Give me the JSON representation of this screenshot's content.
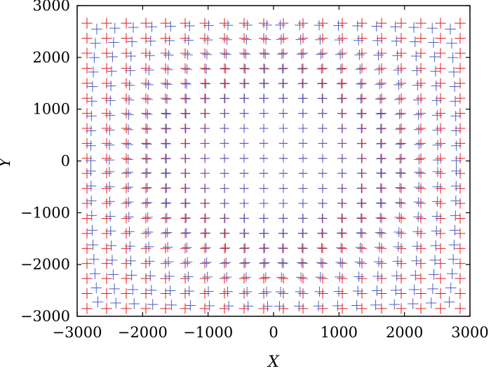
{
  "chart_data": {
    "type": "scatter",
    "title": "",
    "xlabel": "X",
    "ylabel": "Y",
    "xlim": [
      -3000,
      3000
    ],
    "ylim": [
      -3000,
      3000
    ],
    "x_ticks": [
      -3000,
      -2000,
      -1000,
      0,
      1000,
      2000,
      3000
    ],
    "y_ticks": [
      -3000,
      -2000,
      -1000,
      0,
      1000,
      2000,
      3000
    ],
    "x_tick_labels": [
      "−3000",
      "−2000",
      "−1000",
      "0",
      "1000",
      "2000",
      "3000"
    ],
    "y_tick_labels": [
      "−3000",
      "−2000",
      "−1000",
      "0",
      "1000",
      "2000",
      "3000"
    ],
    "grid": false,
    "legend": "none",
    "marker": "+",
    "grid_points": {
      "x_start": -2850,
      "x_step": 300,
      "x_count": 20,
      "y_start": -2850,
      "y_step": 290,
      "y_count": 20
    },
    "series": [
      {
        "color": "#e41a1c",
        "marker": "+",
        "shift": 0
      },
      {
        "color": "#4a5fc1",
        "marker": "+",
        "shift": 18
      }
    ]
  }
}
